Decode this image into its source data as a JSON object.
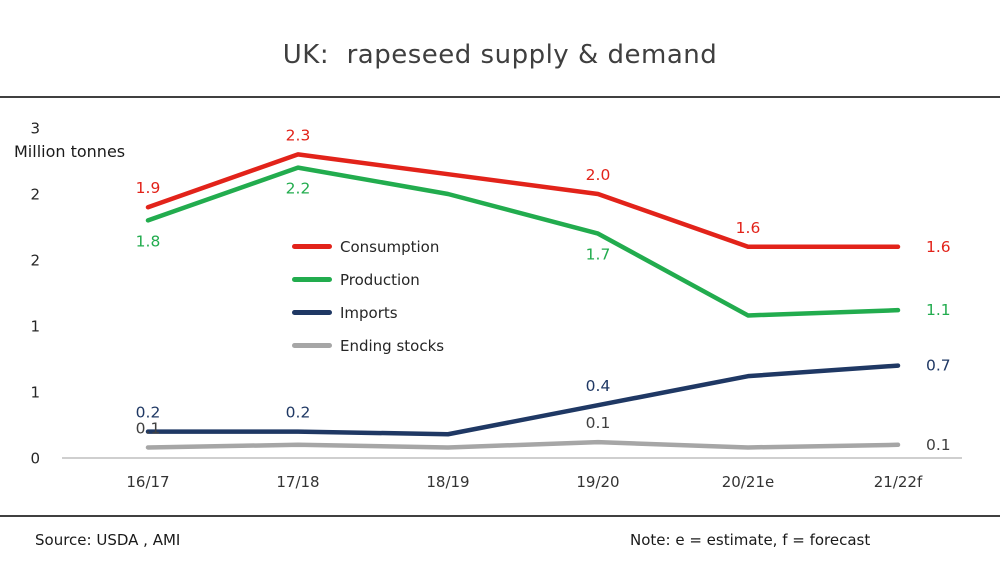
{
  "title": "UK:  rapeseed supply & demand",
  "axis_label": "Million tonnes",
  "footer": {
    "source": "Source: USDA , AMI",
    "note": "Note: e = estimate, f = forecast"
  },
  "chart_data": {
    "type": "line",
    "title": "UK: rapeseed supply & demand",
    "ylabel": "Million tonnes",
    "categories": [
      "16/17",
      "17/18",
      "18/19",
      "19/20",
      "20/21e",
      "21/22f"
    ],
    "y_axis": {
      "min": 0,
      "max": 2.5,
      "tick_values": [
        0,
        0.5,
        1,
        1.5,
        2,
        2.5
      ],
      "tick_labels": [
        "0",
        "1",
        "1",
        "2",
        "2",
        "3"
      ],
      "grid": false
    },
    "legend_position": "inside-left",
    "series": [
      {
        "name": "Consumption",
        "color": "#e2231a",
        "values": [
          1.9,
          2.3,
          2.15,
          2.0,
          1.6,
          1.6
        ],
        "point_labels": [
          {
            "i": 0,
            "text": "1.9",
            "pos": "above"
          },
          {
            "i": 1,
            "text": "2.3",
            "pos": "above"
          },
          {
            "i": 3,
            "text": "2.0",
            "pos": "above"
          },
          {
            "i": 4,
            "text": "1.6",
            "pos": "above"
          },
          {
            "i": 5,
            "text": "1.6",
            "pos": "right"
          }
        ]
      },
      {
        "name": "Production",
        "color": "#22ac4e",
        "values": [
          1.8,
          2.2,
          2.0,
          1.7,
          1.08,
          1.12
        ],
        "point_labels": [
          {
            "i": 0,
            "text": "1.8",
            "pos": "below"
          },
          {
            "i": 1,
            "text": "2.2",
            "pos": "below"
          },
          {
            "i": 3,
            "text": "1.7",
            "pos": "below"
          },
          {
            "i": 5,
            "text": "1.1",
            "pos": "right"
          }
        ]
      },
      {
        "name": "Imports",
        "color": "#1f3864",
        "values": [
          0.2,
          0.2,
          0.18,
          0.4,
          0.62,
          0.7
        ],
        "point_labels": [
          {
            "i": 0,
            "text": "0.2",
            "pos": "above"
          },
          {
            "i": 1,
            "text": "0.2",
            "pos": "above"
          },
          {
            "i": 3,
            "text": "0.4",
            "pos": "above"
          },
          {
            "i": 5,
            "text": "0.7",
            "pos": "right"
          }
        ]
      },
      {
        "name": "Ending stocks",
        "color": "#a6a6a6",
        "label_color": "#404040",
        "values": [
          0.08,
          0.1,
          0.08,
          0.12,
          0.08,
          0.1
        ],
        "point_labels": [
          {
            "i": 0,
            "text": "0.1",
            "pos": "above"
          },
          {
            "i": 3,
            "text": "0.1",
            "pos": "above"
          },
          {
            "i": 5,
            "text": "0.1",
            "pos": "right"
          }
        ]
      }
    ]
  }
}
